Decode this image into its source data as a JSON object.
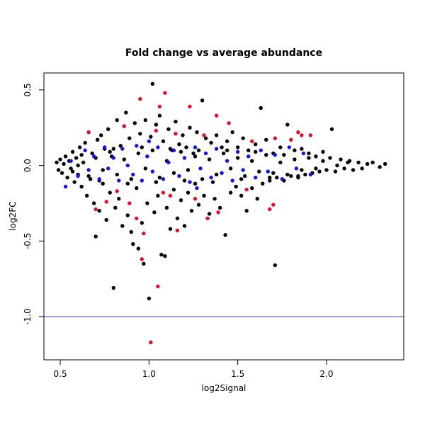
{
  "chart_data": {
    "type": "scatter",
    "title": "Fold change vs average abundance",
    "xlabel": "log2Signal",
    "ylabel": "log2FC",
    "xlim": [
      0.408,
      2.435
    ],
    "ylim": [
      -1.286,
      0.612
    ],
    "xticks": [
      0.5,
      {
        "value": 1.0,
        "label": "1.0"
      },
      1.5,
      {
        "value": 2.0,
        "label": "2.0"
      }
    ],
    "yticks": [
      {
        "value": -1.0,
        "label": "-1.0"
      },
      -0.5,
      {
        "value": 0.0,
        "label": "0.0"
      },
      0.5
    ],
    "hline": {
      "value": -1,
      "color": "#3b3bb0"
    },
    "grid": false,
    "series": [
      {
        "color": "#000000",
        "x": [
          0.48,
          0.49,
          0.5,
          0.51,
          0.52,
          0.53,
          0.54,
          0.55,
          0.56,
          0.57,
          0.58,
          0.59,
          0.6,
          0.61,
          0.62,
          0.63,
          0.64,
          0.65,
          0.66,
          0.67,
          0.68,
          0.69,
          0.7,
          0.71,
          0.72,
          0.73,
          0.74,
          0.75,
          0.76,
          0.77,
          0.78,
          0.79,
          0.8,
          0.81,
          0.82,
          0.83,
          0.84,
          0.85,
          0.86,
          0.87,
          0.88,
          0.89,
          0.9,
          0.91,
          0.92,
          0.93,
          0.94,
          0.95,
          0.96,
          0.97,
          0.98,
          0.99,
          1.0,
          1.01,
          1.02,
          1.03,
          1.04,
          1.05,
          1.06,
          1.07,
          1.08,
          1.09,
          1.1,
          1.11,
          1.12,
          1.13,
          1.14,
          1.15,
          1.16,
          1.17,
          1.18,
          1.19,
          1.2,
          1.21,
          1.22,
          1.23,
          1.24,
          1.25,
          1.26,
          1.27,
          1.28,
          1.3,
          1.31,
          1.32,
          1.34,
          1.35,
          1.37,
          1.38,
          1.4,
          1.41,
          1.43,
          1.44,
          1.46,
          1.47,
          1.49,
          1.5,
          1.52,
          1.53,
          1.55,
          1.56,
          1.58,
          1.6,
          1.61,
          1.63,
          1.64,
          1.66,
          1.68,
          1.7,
          1.71,
          1.72,
          1.74,
          1.76,
          1.78,
          1.8,
          1.82,
          1.84,
          1.86,
          1.88,
          1.9,
          1.92,
          1.94,
          1.96,
          1.98,
          2.0,
          2.02,
          2.03,
          2.05,
          2.08,
          2.1,
          2.13,
          2.15,
          2.18,
          2.2,
          2.23,
          2.26,
          2.3,
          2.33,
          0.57,
          0.62,
          0.66,
          0.7,
          0.74,
          0.78,
          0.82,
          0.86,
          0.9,
          0.94,
          0.98,
          1.02,
          1.06,
          1.1,
          1.14,
          1.18,
          1.22,
          1.26,
          1.3,
          1.34,
          1.38,
          1.42,
          1.46,
          1.5,
          1.54,
          1.58,
          1.62,
          1.66,
          1.7,
          1.74,
          1.78,
          1.82,
          1.86,
          1.9,
          1.94,
          1.98,
          2.06,
          2.12,
          0.6,
          0.72,
          0.8,
          0.88,
          0.96,
          1.04,
          1.12,
          1.2,
          1.28,
          1.36,
          1.44,
          1.52,
          1.6,
          1.68,
          1.76,
          1.84
        ],
        "values": [
          0.02,
          -0.03,
          0.04,
          -0.05,
          0.01,
          0.06,
          -0.08,
          0.03,
          -0.02,
          0.09,
          -0.11,
          0.05,
          -0.06,
          0.12,
          -0.14,
          0.02,
          0.15,
          -0.2,
          0.22,
          -0.09,
          0.08,
          -0.25,
          -0.47,
          0.17,
          -0.3,
          0.2,
          -0.12,
          0.11,
          -0.36,
          0.24,
          -0.18,
          0.06,
          -0.81,
          -0.28,
          0.3,
          -0.22,
          0.13,
          -0.4,
          0.26,
          0.35,
          -0.33,
          0.18,
          -0.44,
          -0.52,
          0.28,
          -0.15,
          -0.55,
          0.21,
          -0.38,
          -0.65,
          0.3,
          -0.25,
          -0.88,
          0.19,
          0.54,
          -0.31,
          0.27,
          -0.2,
          0.33,
          -0.59,
          0.16,
          -0.6,
          -0.28,
          0.24,
          -0.42,
          0.1,
          -0.16,
          0.29,
          -0.35,
          0.14,
          -0.23,
          0.2,
          -0.4,
          0.12,
          -0.18,
          0.25,
          -0.3,
          0.08,
          -0.12,
          0.22,
          -0.26,
          0.43,
          -0.2,
          0.18,
          -0.32,
          0.15,
          -0.22,
          0.2,
          -0.28,
          0.12,
          -0.46,
          0.16,
          -0.18,
          0.22,
          -0.14,
          0.12,
          -0.2,
          0.18,
          -0.3,
          0.1,
          -0.15,
          0.14,
          -0.22,
          0.38,
          -0.12,
          0.17,
          -0.1,
          0.08,
          -0.66,
          -0.08,
          0.12,
          -0.1,
          0.27,
          -0.07,
          0.1,
          -0.08,
          0.11,
          -0.06,
          0.08,
          -0.05,
          0.06,
          -0.04,
          0.09,
          -0.03,
          0.05,
          0.24,
          -0.04,
          0.04,
          -0.02,
          0.03,
          -0.03,
          0.02,
          -0.02,
          0.01,
          0.02,
          -0.01,
          0.01,
          -0.04,
          0.07,
          -0.07,
          0.05,
          -0.03,
          0.09,
          -0.06,
          0.04,
          -0.09,
          0.08,
          -0.02,
          0.1,
          -0.08,
          0.03,
          -0.05,
          0.09,
          -0.03,
          0.06,
          -0.09,
          0.04,
          -0.06,
          0.08,
          -0.02,
          0.05,
          -0.07,
          0.03,
          -0.04,
          0.07,
          -0.05,
          0.02,
          -0.06,
          0.04,
          -0.03,
          0.05,
          -0.02,
          0.03,
          0.0,
          0.02,
          0.0,
          -0.1,
          0.11,
          -0.12,
          0.12,
          -0.11,
          0.11,
          -0.1,
          0.1,
          -0.11,
          0.1,
          -0.09,
          0.09,
          -0.08,
          0.07,
          -0.07
        ]
      },
      {
        "color": "#1414e6",
        "x": [
          0.56,
          0.6,
          0.64,
          0.66,
          0.69,
          0.72,
          0.75,
          0.77,
          0.8,
          0.83,
          0.85,
          0.88,
          0.91,
          0.93,
          0.96,
          0.99,
          1.02,
          1.05,
          1.08,
          1.11,
          1.14,
          1.17,
          1.2,
          1.23,
          1.26,
          1.29,
          1.32,
          1.35,
          1.38,
          1.41,
          1.44,
          1.47,
          1.5,
          1.53,
          1.56,
          1.6,
          1.63,
          1.67,
          1.71,
          1.75,
          1.79,
          1.83,
          1.87,
          1.91,
          0.53,
          1.0,
          1.27
        ],
        "values": [
          0.03,
          -0.07,
          0.1,
          -0.03,
          0.06,
          -0.09,
          0.12,
          -0.02,
          0.05,
          -0.1,
          0.11,
          0.0,
          -0.06,
          0.13,
          -0.1,
          0.06,
          -0.04,
          0.12,
          -0.09,
          0.02,
          0.1,
          -0.07,
          0.05,
          -0.11,
          0.12,
          -0.02,
          0.08,
          -0.08,
          0.11,
          -0.05,
          0.03,
          -0.1,
          0.09,
          -0.03,
          0.06,
          -0.08,
          0.1,
          -0.04,
          0.07,
          -0.09,
          0.12,
          -0.02,
          0.08,
          -0.06,
          -0.14,
          0.16,
          -0.15
        ]
      },
      {
        "color": "#e0102c",
        "x": [
          0.66,
          0.7,
          0.76,
          0.82,
          0.86,
          0.89,
          0.93,
          0.95,
          0.96,
          0.97,
          1.01,
          1.04,
          1.05,
          1.06,
          1.08,
          1.09,
          1.12,
          1.15,
          1.16,
          1.23,
          1.26,
          1.31,
          1.33,
          1.38,
          1.39,
          1.45,
          1.55,
          1.58,
          1.68,
          1.7,
          1.71,
          1.84,
          1.86,
          1.91,
          1.8
        ],
        "values": [
          0.22,
          -0.29,
          -0.24,
          -0.17,
          0.26,
          -0.25,
          -0.35,
          0.44,
          -0.62,
          -0.45,
          -1.17,
          0.23,
          -0.8,
          0.39,
          -0.18,
          0.48,
          -0.2,
          0.21,
          -0.43,
          0.39,
          -0.22,
          0.2,
          -0.35,
          0.33,
          -0.31,
          0.28,
          -0.16,
          0.16,
          -0.29,
          -0.26,
          0.18,
          0.22,
          0.2,
          0.2,
          0.17
        ]
      }
    ]
  }
}
